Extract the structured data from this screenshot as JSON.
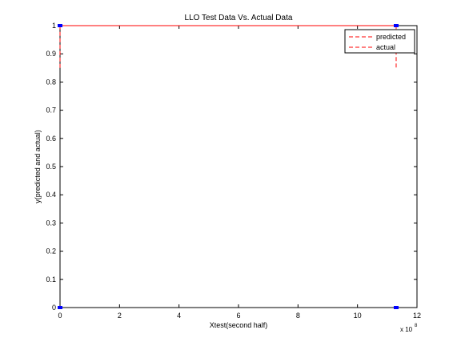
{
  "chart_data": {
    "type": "line",
    "title": "LLO Test Data Vs. Actual Data",
    "xlabel": "Xtest(second half)",
    "ylabel": "y(predicted and actual)",
    "x_exponent_label": "x 10",
    "x_exponent": "8",
    "xlim": [
      0,
      12
    ],
    "ylim": [
      0,
      1
    ],
    "xticks": [
      "0",
      "2",
      "4",
      "6",
      "8",
      "10",
      "12"
    ],
    "yticks": [
      "0",
      "0.1",
      "0.2",
      "0.3",
      "0.4",
      "0.5",
      "0.6",
      "0.7",
      "0.8",
      "0.9",
      "1"
    ],
    "legend_position": "top-right",
    "series": [
      {
        "name": "predicted",
        "color": "#ff0000",
        "linestyle": "dashed",
        "x": [
          0,
          0,
          11.3,
          11.3
        ],
        "y": [
          0.85,
          1,
          1,
          0.85
        ]
      },
      {
        "name": "actual",
        "color": "#ff0000",
        "linestyle": "dashed",
        "x": [
          0,
          11.3
        ],
        "y": [
          1,
          1
        ]
      }
    ],
    "markers": {
      "color": "#0000ff",
      "points": [
        {
          "x": 0,
          "y": 1
        },
        {
          "x": 0,
          "y": 0
        },
        {
          "x": 11.3,
          "y": 1
        },
        {
          "x": 11.3,
          "y": 0
        }
      ]
    }
  }
}
